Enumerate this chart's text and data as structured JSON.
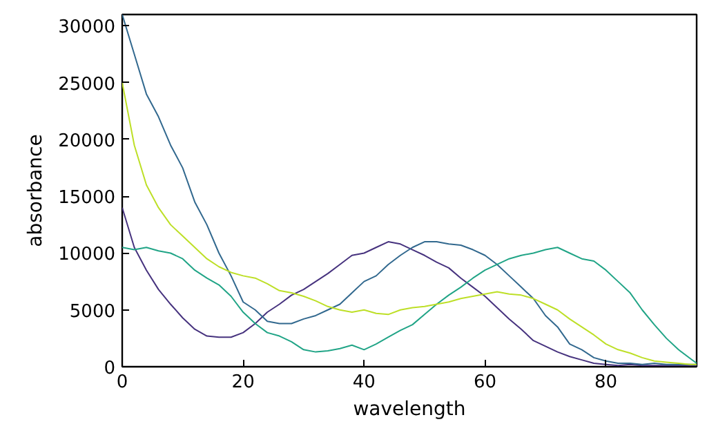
{
  "chart_data": {
    "type": "line",
    "xlabel": "wavelength",
    "ylabel": "absorbance",
    "grid": false,
    "marker": "none",
    "line_style": "solid",
    "xlim": [
      0,
      95
    ],
    "ylim": [
      0,
      31000
    ],
    "xticks": [
      0,
      20,
      40,
      60,
      80
    ],
    "yticks": [
      0,
      5000,
      10000,
      15000,
      20000,
      25000,
      30000
    ],
    "x": [
      0,
      2,
      4,
      6,
      8,
      10,
      12,
      14,
      16,
      18,
      20,
      22,
      24,
      26,
      28,
      30,
      32,
      34,
      36,
      38,
      40,
      42,
      44,
      46,
      48,
      50,
      52,
      54,
      56,
      58,
      60,
      62,
      64,
      66,
      68,
      70,
      72,
      74,
      76,
      78,
      80,
      82,
      84,
      86,
      88,
      90,
      92,
      94,
      95
    ],
    "series": [
      {
        "color": "#46327e",
        "values": [
          14000,
          10500,
          8500,
          6800,
          5500,
          4300,
          3300,
          2700,
          2600,
          2600,
          3000,
          3800,
          4800,
          5500,
          6300,
          6800,
          7500,
          8200,
          9000,
          9800,
          10000,
          10500,
          11000,
          10800,
          10300,
          9800,
          9200,
          8700,
          7800,
          7000,
          6200,
          5200,
          4200,
          3300,
          2300,
          1800,
          1300,
          900,
          600,
          300,
          200,
          100,
          200,
          100,
          100,
          100,
          100,
          100,
          100
        ]
      },
      {
        "color": "#31688e",
        "values": [
          31000,
          27500,
          24000,
          22000,
          19500,
          17500,
          14500,
          12500,
          10000,
          8000,
          5700,
          5000,
          4000,
          3800,
          3800,
          4200,
          4500,
          5000,
          5500,
          6500,
          7500,
          8000,
          9000,
          9800,
          10500,
          11000,
          11000,
          10800,
          10700,
          10300,
          9800,
          9000,
          8000,
          7000,
          6000,
          4500,
          3500,
          2000,
          1500,
          800,
          500,
          300,
          300,
          200,
          300,
          200,
          200,
          200,
          200
        ]
      },
      {
        "color": "#20a486",
        "values": [
          10500,
          10300,
          10500,
          10200,
          10000,
          9500,
          8500,
          7800,
          7200,
          6200,
          4800,
          3800,
          3000,
          2700,
          2200,
          1500,
          1300,
          1400,
          1600,
          1900,
          1500,
          2000,
          2600,
          3200,
          3700,
          4600,
          5500,
          6300,
          7000,
          7800,
          8500,
          9000,
          9500,
          9800,
          10000,
          10300,
          10500,
          10000,
          9500,
          9300,
          8500,
          7500,
          6500,
          5000,
          3700,
          2500,
          1500,
          700,
          300
        ]
      },
      {
        "color": "#bddf26",
        "values": [
          25000,
          19500,
          16000,
          14000,
          12500,
          11500,
          10500,
          9500,
          8800,
          8300,
          8000,
          7800,
          7300,
          6700,
          6500,
          6200,
          5800,
          5300,
          5000,
          4800,
          5000,
          4700,
          4600,
          5000,
          5200,
          5300,
          5500,
          5700,
          6000,
          6200,
          6400,
          6600,
          6400,
          6300,
          6000,
          5500,
          5000,
          4200,
          3500,
          2800,
          2000,
          1500,
          1200,
          800,
          500,
          400,
          300,
          200,
          200
        ]
      }
    ]
  }
}
